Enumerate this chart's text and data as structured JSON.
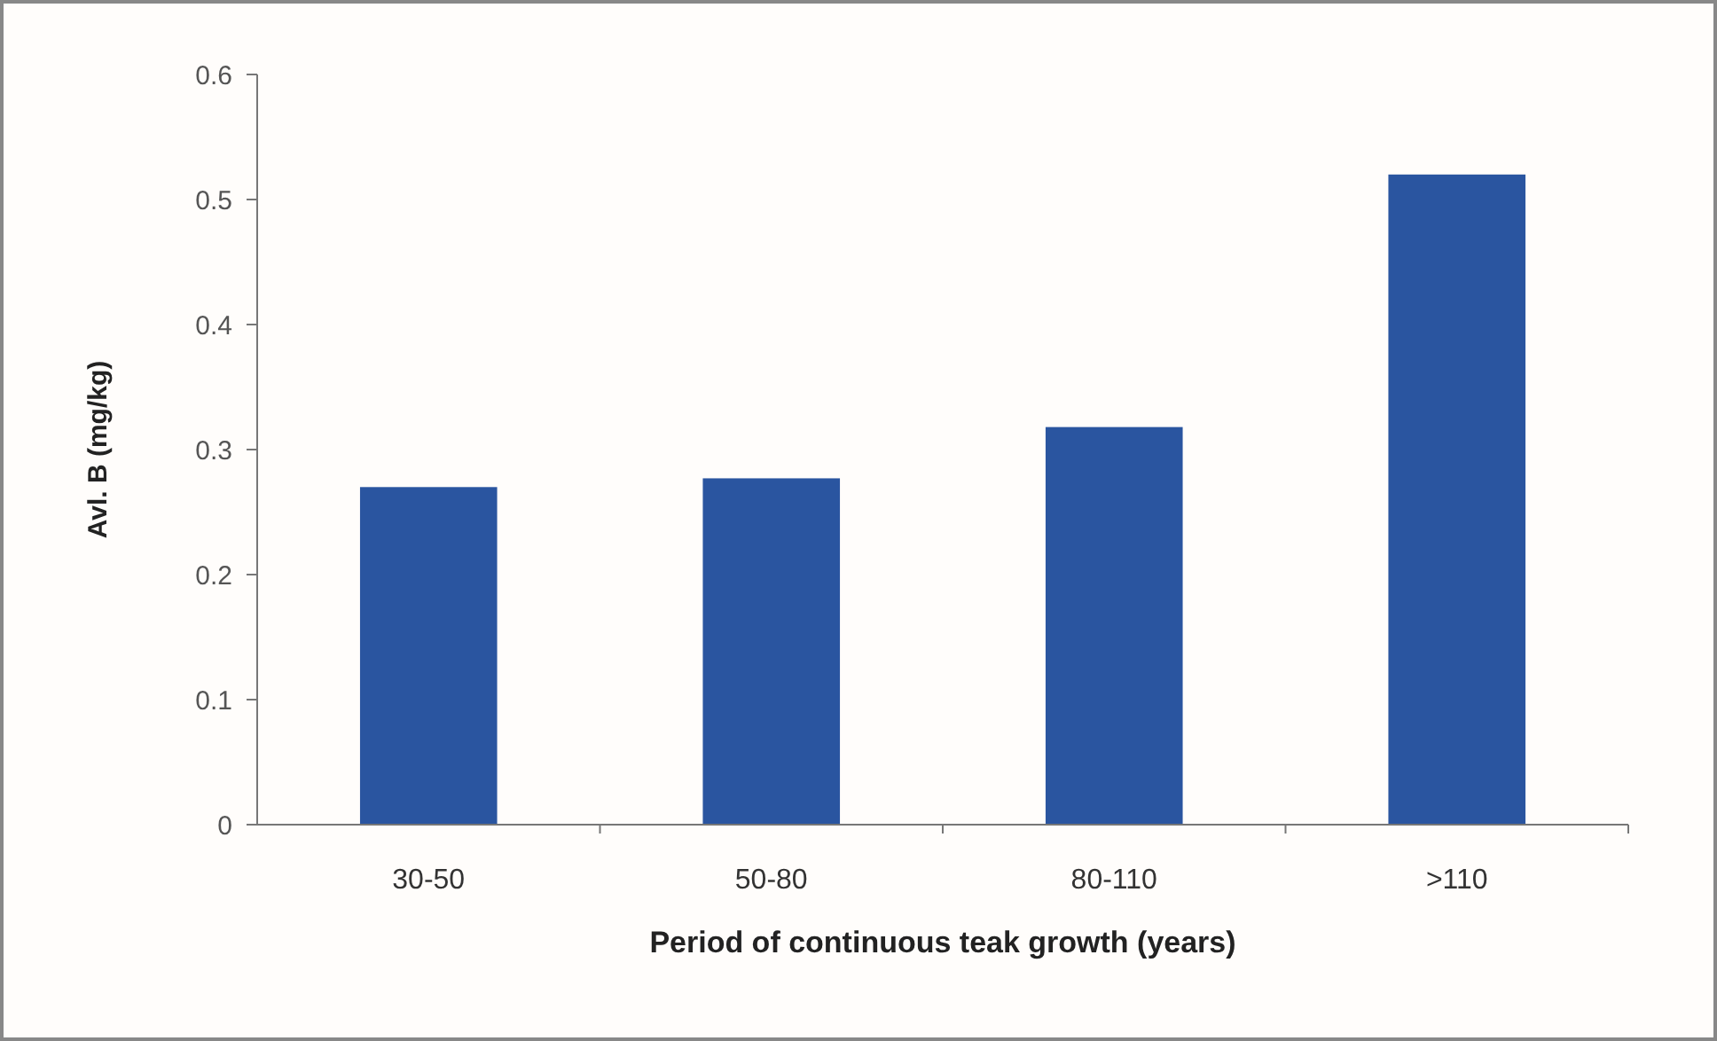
{
  "chart_data": {
    "type": "bar",
    "xlabel": "Period of continuous teak growth (years)",
    "ylabel": "Avl. B (mg/kg)",
    "categories": [
      "30-50",
      "50-80",
      "80-110",
      ">110"
    ],
    "values": [
      0.27,
      0.277,
      0.318,
      0.52
    ],
    "color": "#2a55a0",
    "ylim": [
      0,
      0.6
    ],
    "yticks": [
      0,
      0.1,
      0.2,
      0.3,
      0.4,
      0.5,
      0.6
    ],
    "grid": false
  }
}
